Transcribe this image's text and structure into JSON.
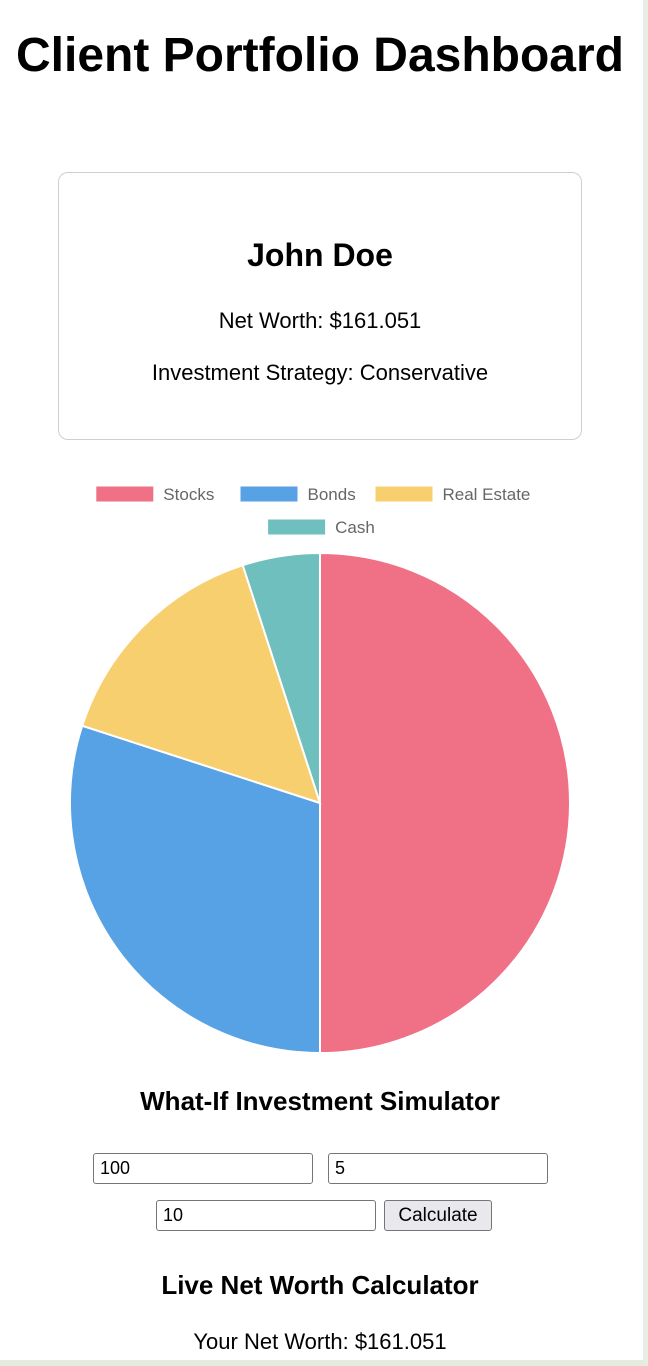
{
  "header": {
    "title": "Client Portfolio Dashboard"
  },
  "client": {
    "name": "John Doe",
    "net_worth_label": "Net Worth: $161.051",
    "strategy_label": "Investment Strategy: Conservative"
  },
  "chart_data": {
    "type": "pie",
    "categories": [
      "Stocks",
      "Bonds",
      "Real Estate",
      "Cash"
    ],
    "values": [
      50,
      30,
      15,
      5
    ],
    "colors": [
      "#f07086",
      "#57a1e5",
      "#f8cf6e",
      "#6fbfbf"
    ],
    "legend_position": "top"
  },
  "simulator": {
    "heading": "What-If Investment Simulator",
    "amount_value": "100",
    "rate_value": "5",
    "years_value": "10",
    "calculate_label": "Calculate"
  },
  "live_calculator": {
    "heading": "Live Net Worth Calculator",
    "result_label": "Your Net Worth: $161.051"
  }
}
